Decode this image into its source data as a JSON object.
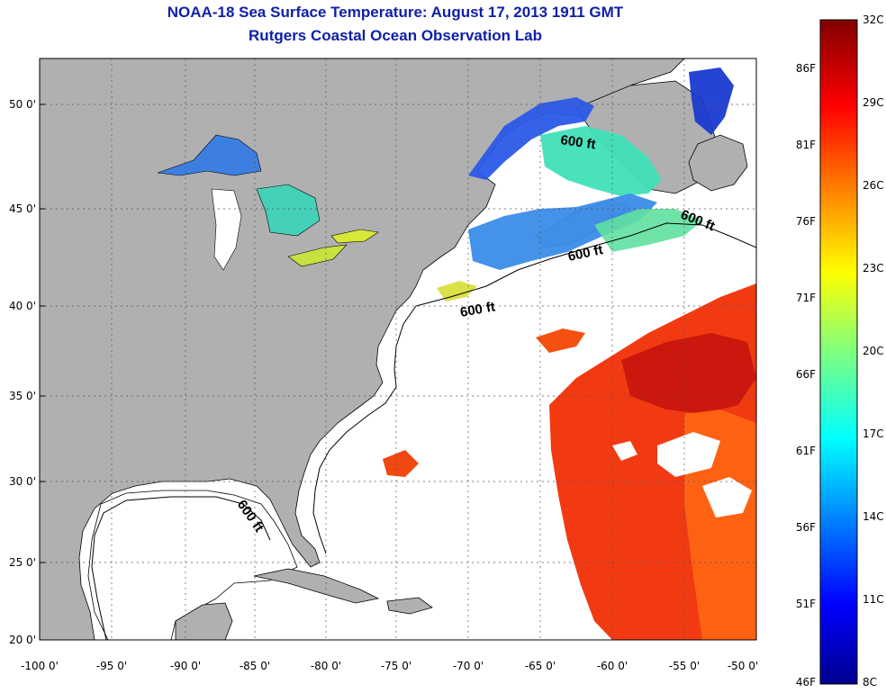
{
  "title": {
    "line1": "NOAA-18 Sea Surface Temperature:  August 17, 2013 1911 GMT",
    "line2": "Rutgers Coastal Ocean Observation Lab"
  },
  "map": {
    "lon_ticks": [
      "-100 0'",
      "-95 0'",
      "-90 0'",
      "-85 0'",
      "-80 0'",
      "-75 0'",
      "-70 0'",
      "-65 0'",
      "-60 0'",
      "-55 0'",
      "-50 0'"
    ],
    "lat_ticks": [
      "20 0'",
      "25 0'",
      "30 0'",
      "35 0'",
      "40 0'",
      "45 0'",
      "50 0'"
    ],
    "contour_label": "600 ft",
    "land_color": "#b0b0b0",
    "water_no_data_color": "#ffffff"
  },
  "colorbar": {
    "celsius": [
      "32C",
      "29C",
      "26C",
      "23C",
      "20C",
      "17C",
      "14C",
      "11C",
      "8C"
    ],
    "fahrenheit": [
      "86F",
      "81F",
      "76F",
      "71F",
      "66F",
      "61F",
      "56F",
      "51F",
      "46F"
    ]
  }
}
